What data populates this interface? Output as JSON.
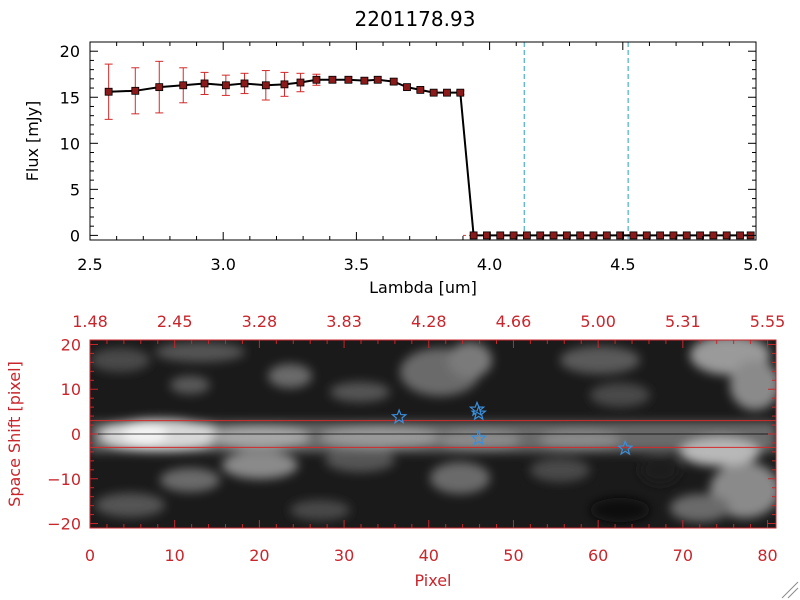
{
  "chart_data": [
    {
      "type": "line",
      "title": "2201178.93",
      "xlabel": "Lambda [um]",
      "ylabel": "Flux [mJy]",
      "xlim": [
        2.5,
        5.0
      ],
      "ylim": [
        -0.5,
        21
      ],
      "x_ticks": [
        {
          "value": 2.5,
          "label": "2.5"
        },
        {
          "value": 3.0,
          "label": "3.0"
        },
        {
          "value": 3.5,
          "label": "3.5"
        },
        {
          "value": 4.0,
          "label": "4.0"
        },
        {
          "value": 4.5,
          "label": "4.5"
        },
        {
          "value": 5.0,
          "label": "5.0"
        }
      ],
      "y_ticks": [
        {
          "value": 0,
          "label": "0"
        },
        {
          "value": 5,
          "label": "5"
        },
        {
          "value": 10,
          "label": "10"
        },
        {
          "value": 15,
          "label": "15"
        },
        {
          "value": 20,
          "label": "20"
        }
      ],
      "colors": {
        "line": "#000000",
        "marker": "#8b1a1a",
        "error": "#d42a2a",
        "vline": "#2aa0b8",
        "baseline": "#d42a2a"
      },
      "series": [
        {
          "x": [
            2.57,
            2.67,
            2.76,
            2.85,
            2.93,
            3.01,
            3.08,
            3.16,
            3.23,
            3.29,
            3.35,
            3.41,
            3.47,
            3.53,
            3.58,
            3.64,
            3.69,
            3.74,
            3.79,
            3.84,
            3.89,
            3.94,
            3.99,
            4.04,
            4.09,
            4.14,
            4.19,
            4.24,
            4.29,
            4.34,
            4.39,
            4.44,
            4.49,
            4.54,
            4.59,
            4.64,
            4.69,
            4.74,
            4.79,
            4.84,
            4.89,
            4.94,
            4.98
          ],
          "y": [
            15.6,
            15.7,
            16.1,
            16.3,
            16.5,
            16.3,
            16.5,
            16.3,
            16.4,
            16.6,
            16.9,
            16.9,
            16.9,
            16.8,
            16.9,
            16.7,
            16.1,
            15.8,
            15.5,
            15.5,
            15.5,
            0,
            0,
            0,
            0,
            0,
            0,
            0,
            0,
            0,
            0,
            0,
            0,
            0,
            0,
            0,
            0,
            0,
            0,
            0,
            0,
            0,
            0
          ],
          "yerr": [
            3.0,
            2.5,
            2.8,
            1.9,
            1.2,
            1.1,
            1.1,
            1.6,
            1.3,
            1.0,
            0.6,
            0.3,
            0.3,
            0.3,
            0.3,
            0.3,
            0.3,
            0.2,
            0.2,
            0.2,
            0.2,
            0,
            0,
            0,
            0,
            0,
            0,
            0,
            0,
            0,
            0,
            0,
            0,
            0,
            0,
            0,
            0,
            0,
            0,
            0,
            0,
            0,
            0
          ]
        }
      ],
      "vlines": [
        4.13,
        4.52
      ],
      "hline": 0
    },
    {
      "type": "heatmap",
      "xlabel": "Pixel",
      "ylabel": "Space Shift [pixel]",
      "xlim": [
        0,
        81
      ],
      "ylim": [
        -21,
        21
      ],
      "x_ticks": [
        {
          "value": 0,
          "label": "0"
        },
        {
          "value": 10,
          "label": "10"
        },
        {
          "value": 20,
          "label": "20"
        },
        {
          "value": 30,
          "label": "30"
        },
        {
          "value": 40,
          "label": "40"
        },
        {
          "value": 50,
          "label": "50"
        },
        {
          "value": 60,
          "label": "60"
        },
        {
          "value": 70,
          "label": "70"
        },
        {
          "value": 80,
          "label": "80"
        }
      ],
      "x_top_ticks": [
        {
          "value": 0,
          "label": "1.48"
        },
        {
          "value": 10,
          "label": "2.45"
        },
        {
          "value": 20,
          "label": "3.28"
        },
        {
          "value": 30,
          "label": "3.83"
        },
        {
          "value": 40,
          "label": "4.28"
        },
        {
          "value": 50,
          "label": "4.66"
        },
        {
          "value": 60,
          "label": "5.00"
        },
        {
          "value": 70,
          "label": "5.31"
        },
        {
          "value": 80,
          "label": "5.55"
        }
      ],
      "y_ticks": [
        {
          "value": 20,
          "label": "20"
        },
        {
          "value": 10,
          "label": "10"
        },
        {
          "value": 0,
          "label": "0"
        },
        {
          "value": -10,
          "label": "−10"
        },
        {
          "value": -20,
          "label": "−20"
        }
      ],
      "colors": {
        "axis": "#c8262c",
        "aperture": "#d42a2a",
        "star": "#3a8fdc",
        "trace": "#000000"
      },
      "aperture_lines": [
        3,
        -3
      ],
      "trace_line": 0,
      "star_markers": [
        {
          "x": 36.5,
          "y": 3.8
        },
        {
          "x": 45.7,
          "y": 5.5
        },
        {
          "x": 45.9,
          "y": 4.6
        },
        {
          "x": 45.9,
          "y": -1.0
        },
        {
          "x": 63.2,
          "y": -3.2
        }
      ]
    }
  ]
}
